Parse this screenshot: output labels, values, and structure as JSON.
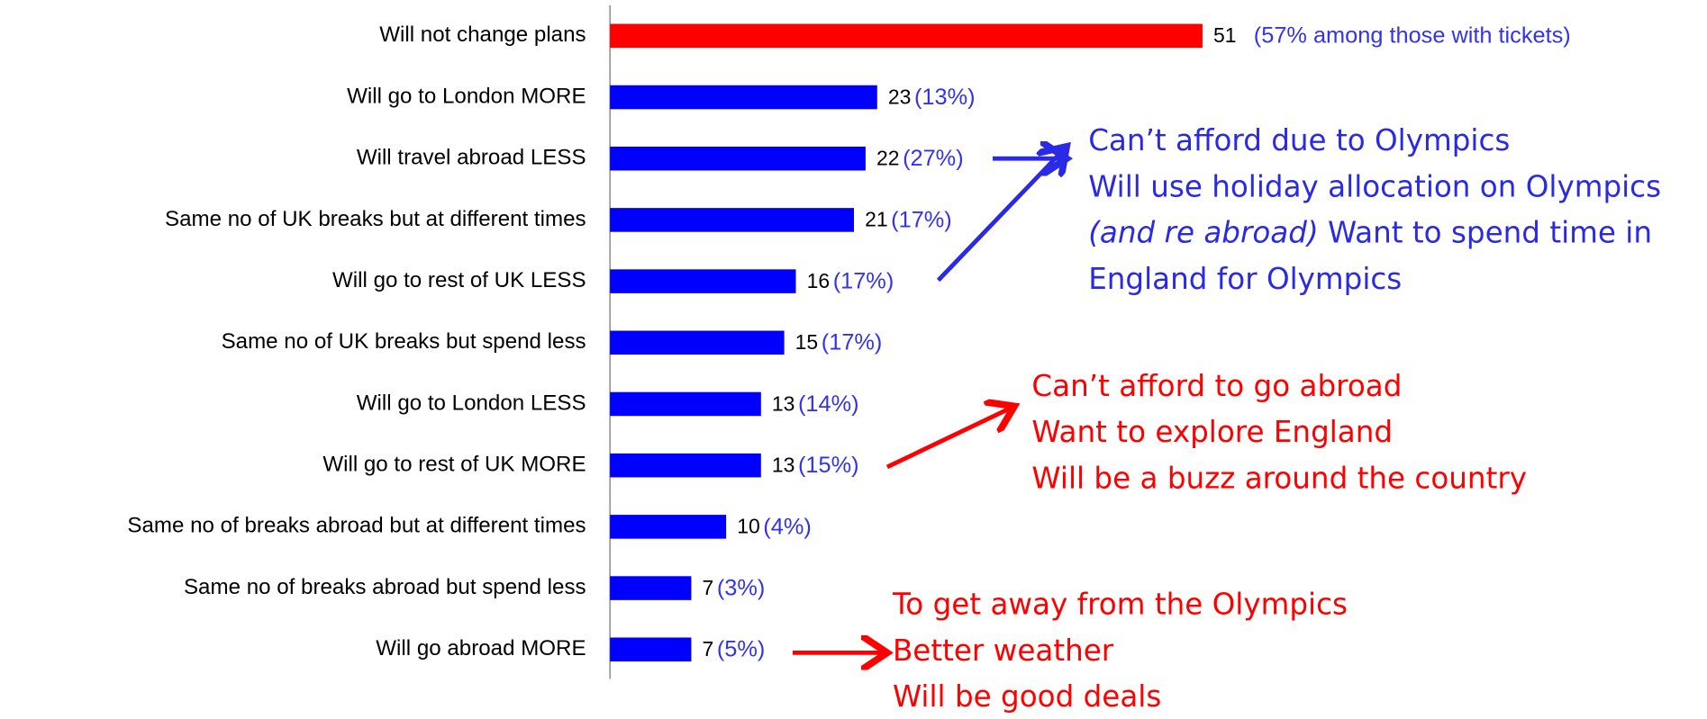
{
  "chart_data": {
    "type": "hbar",
    "categories": [
      "Will not change plans",
      "Will go to London MORE",
      "Will travel abroad LESS",
      "Same no of UK breaks but at different times",
      "Will go to rest of UK LESS",
      "Same no of UK breaks but spend less",
      "Will go to London LESS",
      "Will go to rest of UK MORE",
      "Same no of  breaks abroad but at different times",
      "Same no of breaks abroad but spend less",
      "Will go abroad MORE"
    ],
    "values": [
      51,
      23,
      22,
      21,
      16,
      15,
      13,
      13,
      10,
      7,
      7
    ],
    "colors": [
      "#ff0000",
      "#0000ff",
      "#0000ff",
      "#0000ff",
      "#0000ff",
      "#0000ff",
      "#0000ff",
      "#0000ff",
      "#0000ff",
      "#0000ff",
      "#0000ff"
    ],
    "secondary_labels": [
      "(57% among those with tickets)",
      "(13%)",
      "(27%)",
      "(17%)",
      "(17%)",
      "(17%)",
      "(14%)",
      "(15%)",
      "(4%)",
      "(3%)",
      "(5%)"
    ],
    "secondary_color": "#3333ee",
    "xlim": [
      0,
      51
    ],
    "annotations": [
      {
        "color": "#2a2ae6",
        "lines": [
          [
            {
              "text": "Can’t afford due to Olympics"
            }
          ],
          [
            {
              "text": "Will use holiday allocation on Olympics"
            }
          ],
          [
            {
              "text": "(and re abroad)",
              "italic": true
            },
            {
              "text": " Want to spend time in"
            }
          ],
          [
            {
              "text": "England for Olympics"
            }
          ]
        ]
      },
      {
        "color": "#ff0000",
        "lines": [
          [
            {
              "text": "Can’t afford to go abroad"
            }
          ],
          [
            {
              "text": "Want to explore England"
            }
          ],
          [
            {
              "text": "Will be a buzz around the country"
            }
          ]
        ]
      },
      {
        "color": "#ff0000",
        "lines": [
          [
            {
              "text": "To get away from the Olympics"
            }
          ],
          [
            {
              "text": "Better weather"
            }
          ],
          [
            {
              "text": "Will be good deals"
            }
          ]
        ]
      }
    ]
  }
}
